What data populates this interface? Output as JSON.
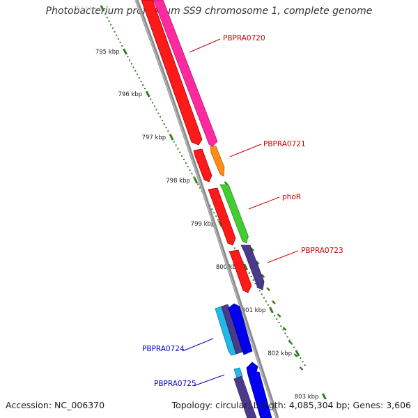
{
  "title": "Photobacterium profundum SS9 chromosome 1, complete genome",
  "footer": {
    "accession": "Accession: NC_006370",
    "stats": "Topology: circular; Length: 4,085,304 bp; Genes: 3,606"
  },
  "ruler": {
    "ticks": [
      {
        "kbp": 794,
        "label": "794 kbp"
      },
      {
        "kbp": 795,
        "label": "795 kbp"
      },
      {
        "kbp": 796,
        "label": "796 kbp"
      },
      {
        "kbp": 797,
        "label": "797 kbp"
      },
      {
        "kbp": 798,
        "label": "798 kbp"
      },
      {
        "kbp": 799,
        "label": "799 kbp"
      },
      {
        "kbp": 800,
        "label": "800 kbp"
      },
      {
        "kbp": 801,
        "label": "801 kbp"
      },
      {
        "kbp": 802,
        "label": "802 kbp"
      },
      {
        "kbp": 803,
        "label": "803 kbp"
      }
    ]
  },
  "colors": {
    "backbone": "#8a8a8a",
    "ruler": "#2e7d1e",
    "forward_label": "#cc0000",
    "reverse_label": "#0000cc"
  },
  "genes": [
    {
      "name": "PBPRA0720",
      "strand": "+",
      "start_kbp": 794.2,
      "end_kbp": 797.6,
      "color": "#ff2aa0"
    },
    {
      "name": "PBPRA0721",
      "strand": "+",
      "start_kbp": 797.75,
      "end_kbp": 798.1,
      "color": "#ff8c1a"
    },
    {
      "name": "phoR",
      "strand": "+",
      "start_kbp": 798.2,
      "end_kbp": 799.6,
      "color": "#44cc33"
    },
    {
      "name": "PBPRA0723",
      "strand": "+",
      "start_kbp": 799.7,
      "end_kbp": 800.6,
      "color": "#4b3a8c"
    },
    {
      "name": "PBPRA0724",
      "strand": "-",
      "start_kbp": 801.0,
      "end_kbp": 802.0,
      "color": "#22b8e8"
    },
    {
      "name": "PBPRA0725",
      "strand": "-",
      "start_kbp": 802.25,
      "end_kbp": 802.5,
      "color": "#22b8e8"
    }
  ]
}
